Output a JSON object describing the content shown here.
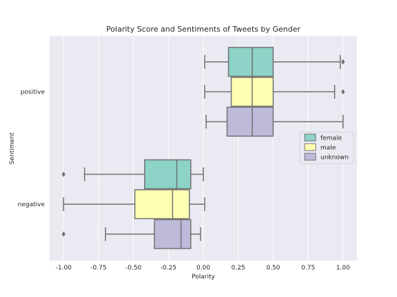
{
  "chart_data": {
    "type": "boxplot",
    "orientation": "horizontal",
    "title": "Polarity Score and Sentiments of Tweets by Gender",
    "xlabel": "Polarity",
    "ylabel": "Sentiment",
    "xlim": [
      -1.1,
      1.1
    ],
    "xticks": [
      "-1.00",
      "-0.75",
      "-0.50",
      "-0.25",
      "0.00",
      "0.25",
      "0.50",
      "0.75",
      "1.00"
    ],
    "xtick_values": [
      -1.0,
      -0.75,
      -0.5,
      -0.25,
      0.0,
      0.25,
      0.5,
      0.75,
      1.0
    ],
    "categories": [
      "positive",
      "negative"
    ],
    "hue_order": [
      "female",
      "male",
      "unknown"
    ],
    "colors": {
      "female": "#8dd3c7",
      "male": "#ffffb3",
      "unknown": "#bebada"
    },
    "legend": {
      "location": "center-right",
      "entries": [
        "female",
        "male",
        "unknown"
      ]
    },
    "series": [
      {
        "sentiment": "positive",
        "gender": "female",
        "whisker_low": 0.01,
        "q1": 0.18,
        "median": 0.35,
        "q3": 0.5,
        "whisker_high": 0.98,
        "outliers": [
          1.0
        ]
      },
      {
        "sentiment": "positive",
        "gender": "male",
        "whisker_low": 0.01,
        "q1": 0.2,
        "median": 0.35,
        "q3": 0.5,
        "whisker_high": 0.94,
        "outliers": [
          1.0
        ]
      },
      {
        "sentiment": "positive",
        "gender": "unknown",
        "whisker_low": 0.02,
        "q1": 0.17,
        "median": 0.35,
        "q3": 0.5,
        "whisker_high": 1.0,
        "outliers": []
      },
      {
        "sentiment": "negative",
        "gender": "female",
        "whisker_low": -0.85,
        "q1": -0.42,
        "median": -0.19,
        "q3": -0.09,
        "whisker_high": 0.0,
        "outliers": [
          -1.0
        ]
      },
      {
        "sentiment": "negative",
        "gender": "male",
        "whisker_low": -1.0,
        "q1": -0.49,
        "median": -0.22,
        "q3": -0.1,
        "whisker_high": 0.01,
        "outliers": []
      },
      {
        "sentiment": "negative",
        "gender": "unknown",
        "whisker_low": -0.7,
        "q1": -0.35,
        "median": -0.16,
        "q3": -0.09,
        "whisker_high": -0.02,
        "outliers": [
          -1.0
        ]
      }
    ]
  }
}
